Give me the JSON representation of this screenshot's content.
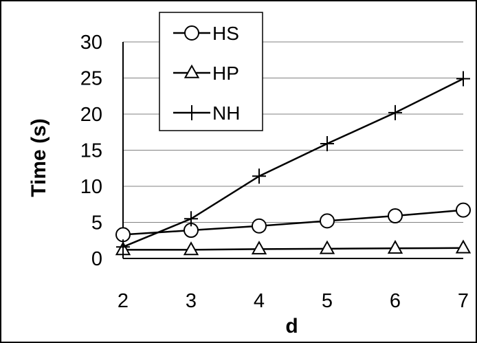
{
  "chart_data": {
    "type": "line",
    "title": "",
    "xlabel": "d",
    "ylabel": "Time (s)",
    "x": [
      2,
      3,
      4,
      5,
      6,
      7
    ],
    "xlim": [
      2,
      7
    ],
    "ylim": [
      0,
      30
    ],
    "x_ticks": [
      "2",
      "3",
      "4",
      "5",
      "6",
      "7"
    ],
    "y_ticks": [
      "0",
      "5",
      "10",
      "15",
      "20",
      "25",
      "30"
    ],
    "grid": "horizontal",
    "legend_position": "top-left",
    "series": [
      {
        "name": "HS",
        "marker": "circle",
        "values": [
          3.3,
          3.9,
          4.5,
          5.2,
          5.9,
          6.7
        ]
      },
      {
        "name": "HP",
        "marker": "triangle",
        "values": [
          1.2,
          1.2,
          1.3,
          1.35,
          1.4,
          1.45
        ]
      },
      {
        "name": "NH",
        "marker": "plus",
        "values": [
          1.6,
          5.5,
          11.4,
          15.9,
          20.2,
          24.9
        ]
      }
    ],
    "line_color": "#000000",
    "grid_color": "#808080"
  }
}
